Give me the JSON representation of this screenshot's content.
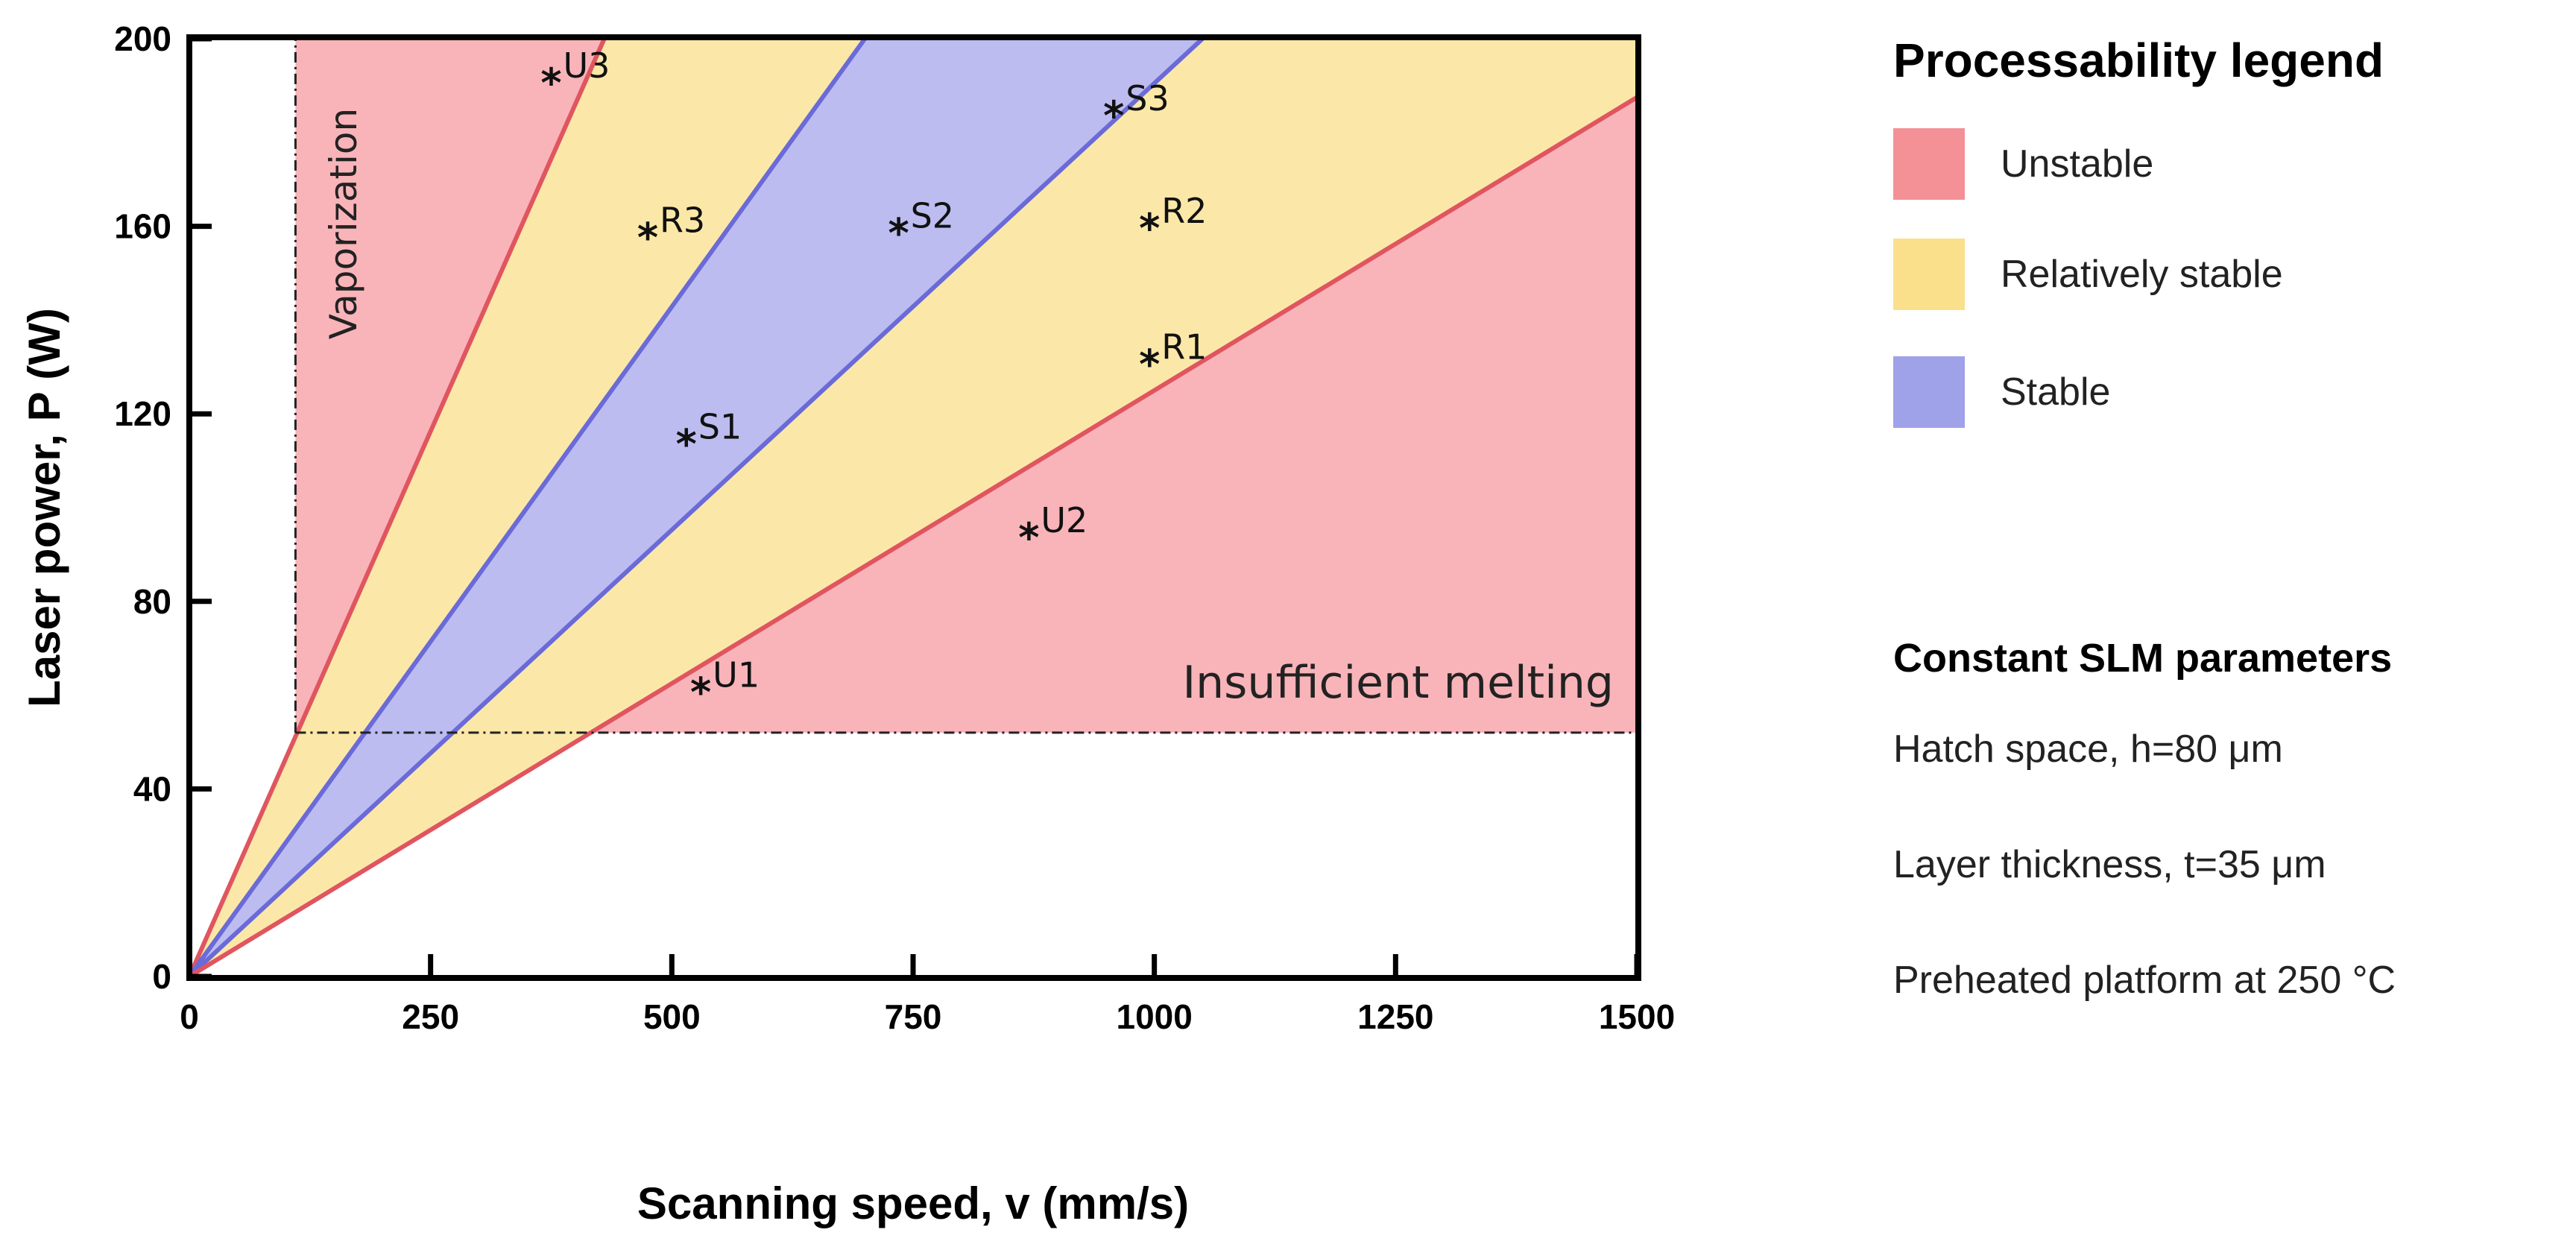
{
  "chart_data": {
    "type": "area",
    "title": "",
    "xlabel": "Scanning speed, v (mm/s)",
    "ylabel": "Laser power, P (W)",
    "xlim": [
      0,
      1500
    ],
    "ylim": [
      0,
      200
    ],
    "xticks": [
      "0",
      "250",
      "500",
      "750",
      "1000",
      "1250",
      "1500"
    ],
    "yticks": [
      "0",
      "40",
      "80",
      "120",
      "160",
      "200"
    ],
    "colors": {
      "unstable_fill": "#f8b4b9",
      "relatively_stable_fill": "#fbe8a8",
      "stable_fill": "#bcbcf0",
      "unstable_line": "#e05560",
      "stable_line": "#6a6ad8",
      "legend_unstable": "#f49196",
      "legend_relatively_stable": "#fbe08c",
      "legend_stable": "#9fa2e8"
    },
    "region_bounds": {
      "vmin": 110,
      "pmin": 52
    },
    "boundary_lines": [
      {
        "name": "U3 boundary (upper unstable)",
        "slope": 0.4651,
        "class": "unstable"
      },
      {
        "name": "stable band upper",
        "slope": 0.2857,
        "class": "stable"
      },
      {
        "name": "stable band lower",
        "slope": 0.1905,
        "class": "stable"
      },
      {
        "name": "lower unstable boundary",
        "slope": 0.125,
        "class": "unstable"
      }
    ],
    "points": [
      {
        "label": "U3",
        "v": 375,
        "p": 193
      },
      {
        "label": "R3",
        "v": 475,
        "p": 160
      },
      {
        "label": "S2",
        "v": 735,
        "p": 161
      },
      {
        "label": "S3",
        "v": 958,
        "p": 186
      },
      {
        "label": "R2",
        "v": 995,
        "p": 162
      },
      {
        "label": "R1",
        "v": 995,
        "p": 133
      },
      {
        "label": "S1",
        "v": 515,
        "p": 116
      },
      {
        "label": "U2",
        "v": 870,
        "p": 96
      },
      {
        "label": "U1",
        "v": 530,
        "p": 63
      }
    ],
    "annotations": {
      "vaporization": "Vaporization",
      "insufficient_melting": "Insufficient melting"
    }
  },
  "legend": {
    "title": "Processability legend",
    "items": [
      {
        "label": "Unstable",
        "color": "#f49196"
      },
      {
        "label": "Relatively stable",
        "color": "#fbe08c"
      },
      {
        "label": "Stable",
        "color": "#9fa2e8"
      }
    ]
  },
  "params": {
    "title": "Constant SLM parameters",
    "lines": [
      "Hatch space, h=80 μm",
      "Layer thickness, t=35 μm",
      "Preheated platform at 250 °C"
    ]
  }
}
